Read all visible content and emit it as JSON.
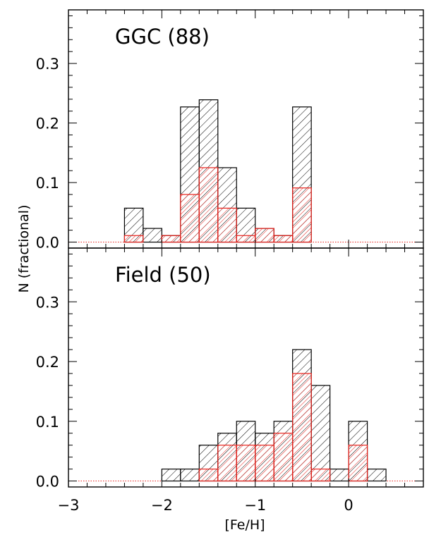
{
  "chart_data": {
    "type": "bar",
    "xlabel": "[Fe/H]",
    "ylabel": "N (fractional)",
    "xlim": [
      -3.0,
      0.8
    ],
    "xticks": [
      "−3",
      "−2",
      "−1",
      "0"
    ],
    "yticks": [
      "0.0",
      "0.1",
      "0.2",
      "0.3"
    ],
    "bin_width": 0.2,
    "colors": {
      "total": "#000000",
      "subset": "#e8201a"
    },
    "panels": [
      {
        "title": "GGC (88)",
        "ylim": [
          -0.01,
          0.39
        ],
        "series": [
          {
            "role": "total",
            "bins": [
              {
                "x0": -2.4,
                "x1": -2.2,
                "y": 0.057
              },
              {
                "x0": -2.2,
                "x1": -2.0,
                "y": 0.023
              },
              {
                "x0": -2.0,
                "x1": -1.8,
                "y": 0.011
              },
              {
                "x0": -1.8,
                "x1": -1.6,
                "y": 0.227
              },
              {
                "x0": -1.6,
                "x1": -1.4,
                "y": 0.239
              },
              {
                "x0": -1.4,
                "x1": -1.2,
                "y": 0.125
              },
              {
                "x0": -1.2,
                "x1": -1.0,
                "y": 0.057
              },
              {
                "x0": -1.0,
                "x1": -0.8,
                "y": 0.023
              },
              {
                "x0": -0.8,
                "x1": -0.6,
                "y": 0.011
              },
              {
                "x0": -0.6,
                "x1": -0.4,
                "y": 0.227
              }
            ]
          },
          {
            "role": "subset",
            "bins": [
              {
                "x0": -2.4,
                "x1": -2.2,
                "y": 0.011
              },
              {
                "x0": -2.0,
                "x1": -1.8,
                "y": 0.011
              },
              {
                "x0": -1.8,
                "x1": -1.6,
                "y": 0.08
              },
              {
                "x0": -1.6,
                "x1": -1.4,
                "y": 0.125
              },
              {
                "x0": -1.4,
                "x1": -1.2,
                "y": 0.057
              },
              {
                "x0": -1.2,
                "x1": -1.0,
                "y": 0.011
              },
              {
                "x0": -1.0,
                "x1": -0.8,
                "y": 0.023
              },
              {
                "x0": -0.8,
                "x1": -0.6,
                "y": 0.011
              },
              {
                "x0": -0.6,
                "x1": -0.4,
                "y": 0.091
              }
            ]
          }
        ]
      },
      {
        "title": "Field (50)",
        "ylim": [
          -0.01,
          0.39
        ],
        "series": [
          {
            "role": "total",
            "bins": [
              {
                "x0": -2.0,
                "x1": -1.8,
                "y": 0.02
              },
              {
                "x0": -1.8,
                "x1": -1.6,
                "y": 0.02
              },
              {
                "x0": -1.6,
                "x1": -1.4,
                "y": 0.06
              },
              {
                "x0": -1.4,
                "x1": -1.2,
                "y": 0.08
              },
              {
                "x0": -1.2,
                "x1": -1.0,
                "y": 0.1
              },
              {
                "x0": -1.0,
                "x1": -0.8,
                "y": 0.08
              },
              {
                "x0": -0.8,
                "x1": -0.6,
                "y": 0.1
              },
              {
                "x0": -0.6,
                "x1": -0.4,
                "y": 0.22
              },
              {
                "x0": -0.4,
                "x1": -0.2,
                "y": 0.16
              },
              {
                "x0": -0.2,
                "x1": 0.0,
                "y": 0.02
              },
              {
                "x0": 0.0,
                "x1": 0.2,
                "y": 0.1
              },
              {
                "x0": 0.2,
                "x1": 0.4,
                "y": 0.02
              }
            ]
          },
          {
            "role": "subset",
            "bins": [
              {
                "x0": -1.6,
                "x1": -1.4,
                "y": 0.02
              },
              {
                "x0": -1.4,
                "x1": -1.2,
                "y": 0.06
              },
              {
                "x0": -1.2,
                "x1": -1.0,
                "y": 0.06
              },
              {
                "x0": -1.0,
                "x1": -0.8,
                "y": 0.06
              },
              {
                "x0": -0.8,
                "x1": -0.6,
                "y": 0.08
              },
              {
                "x0": -0.6,
                "x1": -0.4,
                "y": 0.18
              },
              {
                "x0": -0.4,
                "x1": -0.2,
                "y": 0.02
              },
              {
                "x0": -0.2,
                "x1": 0.0,
                "y": 0.0
              },
              {
                "x0": 0.0,
                "x1": 0.2,
                "y": 0.06
              }
            ]
          }
        ]
      }
    ]
  }
}
